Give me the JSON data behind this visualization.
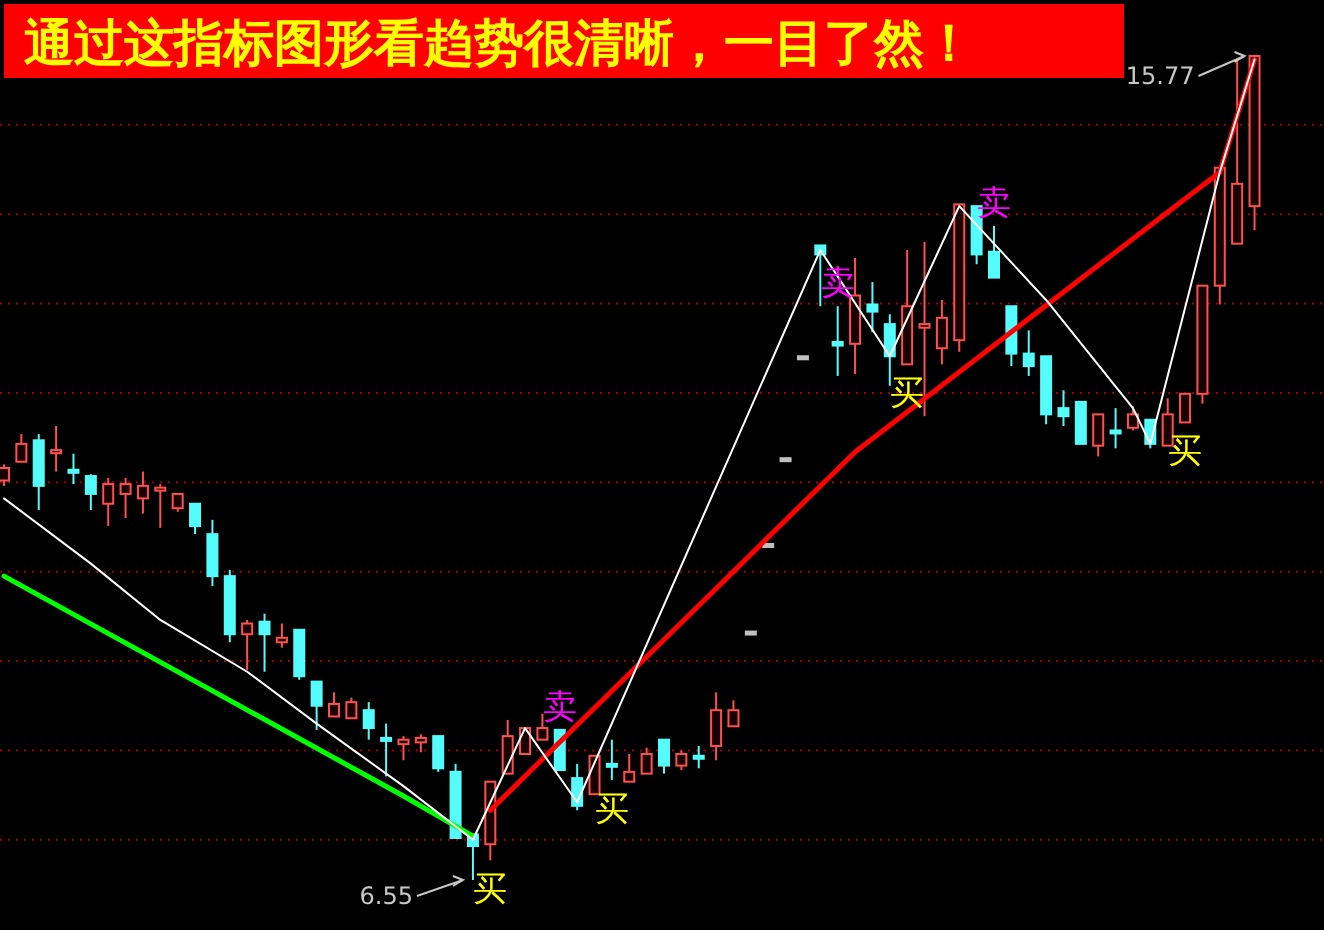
{
  "chart_data": {
    "type": "candlestick",
    "title": "通过这指标图形看趋势很清晰，一目了然！",
    "categories": [
      null,
      null,
      null,
      null,
      null,
      null,
      null,
      null,
      null,
      null,
      null,
      null,
      null,
      null,
      null,
      null,
      null,
      null,
      null,
      null,
      null,
      null,
      null,
      null,
      null,
      null,
      null,
      null,
      null,
      null,
      null,
      null,
      null,
      null,
      null,
      null,
      null,
      null,
      null,
      null,
      null,
      null,
      null,
      null,
      null,
      null,
      null,
      null,
      null,
      null,
      null,
      null,
      null,
      null,
      null,
      null,
      null,
      null,
      null,
      null,
      null,
      null,
      null,
      null,
      null,
      null,
      null,
      null,
      null,
      null,
      null,
      null,
      null
    ],
    "yticks": [
      {
        "value": 7,
        "label": null
      },
      {
        "value": 8,
        "label": null
      },
      {
        "value": 9,
        "label": null
      },
      {
        "value": 10,
        "label": null
      },
      {
        "value": 11,
        "label": null
      },
      {
        "value": 12,
        "label": null
      },
      {
        "value": 13,
        "label": null
      },
      {
        "value": 14,
        "label": null
      },
      {
        "value": 15,
        "label": null
      }
    ],
    "grid": "y",
    "ohlc": [
      [
        11.02,
        11.2,
        10.96,
        11.16
      ],
      [
        11.23,
        11.54,
        11.23,
        11.43
      ],
      [
        11.47,
        11.54,
        10.69,
        10.96
      ],
      [
        11.34,
        11.63,
        11.12,
        11.36
      ],
      [
        11.14,
        11.32,
        10.98,
        11.14
      ],
      [
        11.07,
        11.09,
        10.69,
        10.87
      ],
      [
        10.76,
        11.05,
        10.51,
        10.98
      ],
      [
        10.87,
        11.05,
        10.6,
        10.98
      ],
      [
        10.82,
        11.12,
        10.65,
        10.96
      ],
      [
        10.91,
        10.98,
        10.49,
        10.94
      ],
      [
        10.71,
        10.87,
        10.67,
        10.87
      ],
      [
        10.76,
        10.76,
        10.42,
        10.51
      ],
      [
        10.42,
        10.58,
        9.84,
        9.95
      ],
      [
        9.95,
        10.02,
        9.21,
        9.3
      ],
      [
        9.3,
        9.46,
        8.9,
        9.42
      ],
      [
        9.44,
        9.53,
        8.88,
        9.3
      ],
      [
        9.21,
        9.42,
        9.15,
        9.26
      ],
      [
        9.35,
        9.35,
        8.79,
        8.83
      ],
      [
        8.77,
        8.77,
        8.23,
        8.5
      ],
      [
        8.38,
        8.65,
        8.38,
        8.52
      ],
      [
        8.36,
        8.59,
        8.36,
        8.54
      ],
      [
        8.45,
        8.54,
        8.12,
        8.25
      ],
      [
        8.14,
        8.3,
        7.71,
        8.14
      ],
      [
        8.07,
        8.16,
        7.89,
        8.12
      ],
      [
        8.09,
        8.18,
        7.98,
        8.14
      ],
      [
        8.16,
        8.16,
        7.76,
        7.8
      ],
      [
        7.76,
        7.85,
        7.02,
        7.02
      ],
      [
        7.06,
        7.06,
        6.55,
        6.93
      ],
      [
        6.95,
        7.65,
        6.77,
        7.65
      ],
      [
        7.74,
        8.34,
        7.74,
        8.16
      ],
      [
        7.96,
        8.25,
        7.96,
        8.25
      ],
      [
        8.12,
        8.41,
        8.12,
        8.25
      ],
      [
        8.23,
        8.23,
        7.78,
        7.78
      ],
      [
        7.69,
        7.85,
        7.33,
        7.38
      ],
      [
        7.51,
        7.94,
        7.51,
        7.94
      ],
      [
        7.85,
        8.12,
        7.67,
        7.85
      ],
      [
        7.65,
        7.96,
        7.65,
        7.76
      ],
      [
        7.74,
        8.03,
        7.74,
        7.96
      ],
      [
        8.12,
        8.12,
        7.74,
        7.83
      ],
      [
        7.83,
        8.0,
        7.78,
        7.96
      ],
      [
        7.94,
        8.05,
        7.8,
        7.94
      ],
      [
        8.05,
        8.65,
        7.89,
        8.45
      ],
      [
        8.27,
        8.56,
        8.27,
        8.45
      ],
      [
        9.33,
        9.33,
        9.33,
        9.33
      ],
      [
        10.31,
        10.31,
        10.31,
        10.31
      ],
      [
        11.27,
        11.27,
        11.27,
        11.27
      ],
      [
        12.41,
        12.41,
        12.41,
        12.41
      ],
      [
        13.65,
        13.65,
        12.97,
        13.55
      ],
      [
        12.57,
        12.97,
        12.19,
        12.53
      ],
      [
        12.55,
        13.51,
        12.21,
        13.09
      ],
      [
        12.99,
        13.24,
        12.68,
        12.91
      ],
      [
        12.77,
        12.88,
        12.08,
        12.41
      ],
      [
        12.32,
        13.6,
        12.32,
        12.97
      ],
      [
        12.73,
        13.69,
        11.74,
        12.77
      ],
      [
        12.5,
        13.04,
        12.32,
        12.84
      ],
      [
        12.59,
        14.11,
        12.46,
        14.11
      ],
      [
        14.09,
        14.09,
        13.44,
        13.55
      ],
      [
        13.58,
        13.87,
        13.29,
        13.29
      ],
      [
        12.97,
        12.97,
        12.3,
        12.44
      ],
      [
        12.44,
        12.7,
        12.19,
        12.3
      ],
      [
        12.41,
        12.41,
        11.65,
        11.76
      ],
      [
        11.83,
        12.03,
        11.63,
        11.74
      ],
      [
        11.9,
        11.9,
        11.43,
        11.43
      ],
      [
        11.41,
        11.76,
        11.29,
        11.76
      ],
      [
        11.58,
        11.83,
        11.38,
        11.58
      ],
      [
        11.61,
        11.85,
        11.58,
        11.76
      ],
      [
        11.7,
        11.7,
        11.38,
        11.43
      ],
      [
        11.41,
        11.94,
        11.41,
        11.76
      ],
      [
        11.67,
        11.99,
        11.67,
        11.99
      ],
      [
        11.99,
        13.2,
        11.88,
        13.2
      ],
      [
        13.2,
        14.52,
        12.99,
        14.52
      ],
      [
        13.67,
        15.73,
        13.67,
        14.34
      ],
      [
        14.09,
        15.77,
        13.82,
        15.77
      ]
    ],
    "colors": [
      "#ff5050",
      "#ff5050",
      "#54fcfc",
      "#ff5050",
      "#54fcfc",
      "#54fcfc",
      "#ff5050",
      "#ff5050",
      "#ff5050",
      "#ff5050",
      "#ff5050",
      "#54fcfc",
      "#54fcfc",
      "#54fcfc",
      "#ff5050",
      "#54fcfc",
      "#ff5050",
      "#54fcfc",
      "#54fcfc",
      "#ff5050",
      "#ff5050",
      "#54fcfc",
      "#54fcfc",
      "#ff5050",
      "#ff5050",
      "#54fcfc",
      "#54fcfc",
      "#54fcfc",
      "#ff5050",
      "#ff5050",
      "#ff5050",
      "#ff5050",
      "#54fcfc",
      "#54fcfc",
      "#ff5050",
      "#54fcfc",
      "#ff5050",
      "#ff5050",
      "#54fcfc",
      "#ff5050",
      "#54fcfc",
      "#ff5050",
      "#ff5050",
      "#c0c0c0",
      "#c0c0c0",
      "#c0c0c0",
      "#c0c0c0",
      "#54fcfc",
      "#54fcfc",
      "#ff5050",
      "#54fcfc",
      "#54fcfc",
      "#ff5050",
      "#ff5050",
      "#ff5050",
      "#ff5050",
      "#54fcfc",
      "#54fcfc",
      "#54fcfc",
      "#54fcfc",
      "#54fcfc",
      "#54fcfc",
      "#54fcfc",
      "#ff5050",
      "#54fcfc",
      "#ff5050",
      "#54fcfc",
      "#ff5050",
      "#ff5050",
      "#ff5050",
      "#ff5050",
      "#ff5050",
      "#ff5050"
    ],
    "series": [
      {
        "type": "line",
        "color": "#00ff00",
        "values": [
          9.95,
          null,
          null,
          null,
          null,
          null,
          null,
          null,
          null,
          null,
          null,
          null,
          null,
          8.56,
          null,
          null,
          null,
          null,
          null,
          null,
          null,
          null,
          null,
          7.49,
          null,
          null,
          null,
          7.04,
          null,
          null,
          null,
          null,
          null,
          null,
          null,
          null,
          null,
          null,
          null,
          null,
          null,
          null,
          null,
          null,
          null,
          null,
          null,
          null,
          null,
          null,
          null,
          null,
          null,
          null,
          null,
          null,
          null,
          null,
          null,
          null,
          null,
          null,
          null,
          null,
          null,
          null,
          null,
          null,
          null,
          null,
          null,
          null,
          null
        ]
      },
      {
        "type": "line",
        "color": "#ff0000",
        "values": [
          null,
          null,
          null,
          null,
          null,
          null,
          null,
          null,
          null,
          null,
          null,
          null,
          null,
          null,
          null,
          null,
          null,
          null,
          null,
          null,
          null,
          null,
          null,
          null,
          null,
          null,
          null,
          null,
          7.33,
          null,
          null,
          null,
          null,
          null,
          null,
          null,
          null,
          null,
          null,
          null,
          null,
          null,
          null,
          null,
          null,
          null,
          null,
          null,
          null,
          11.34,
          null,
          null,
          null,
          null,
          null,
          null,
          null,
          null,
          null,
          null,
          null,
          null,
          null,
          null,
          null,
          null,
          null,
          null,
          null,
          null,
          14.47,
          null,
          15.73
        ]
      },
      {
        "type": "line",
        "color": "#ffffff",
        "values": [
          10.82,
          null,
          null,
          null,
          null,
          10.09,
          null,
          null,
          null,
          9.46,
          null,
          null,
          null,
          null,
          8.88,
          null,
          null,
          null,
          8.3,
          null,
          null,
          null,
          null,
          7.6,
          null,
          null,
          null,
          7.0,
          null,
          null,
          8.25,
          null,
          null,
          7.42,
          null,
          null,
          null,
          null,
          null,
          null,
          null,
          null,
          null,
          null,
          null,
          null,
          null,
          13.6,
          null,
          null,
          null,
          12.41,
          null,
          null,
          null,
          14.09,
          null,
          null,
          null,
          null,
          13.04,
          null,
          null,
          null,
          null,
          11.83,
          11.43,
          null,
          null,
          null,
          14.47,
          null,
          15.73
        ]
      }
    ],
    "annotations": [
      "买",
      "买",
      "买",
      "买",
      "卖",
      "卖",
      "卖",
      "15.77",
      "6.55"
    ]
  }
}
